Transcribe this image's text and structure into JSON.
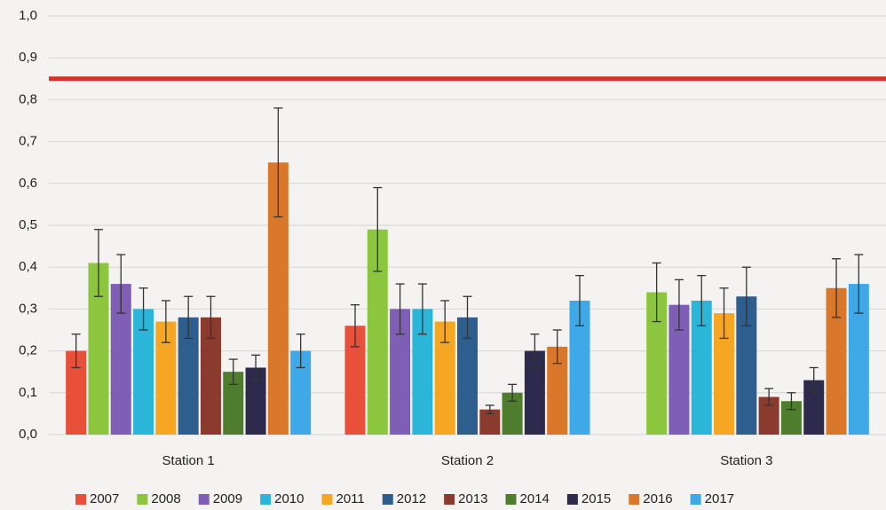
{
  "chart_data": {
    "type": "bar",
    "categories": [
      "Station 1",
      "Station 2",
      "Station 3"
    ],
    "ylim": [
      0,
      1
    ],
    "yticks": [
      {
        "value": 0,
        "label": "0,0"
      },
      {
        "value": 0.1,
        "label": "0,1"
      },
      {
        "value": 0.2,
        "label": "0,2"
      },
      {
        "value": 0.3,
        "label": "0,3"
      },
      {
        "value": 0.4,
        "label": "0,4"
      },
      {
        "value": 0.5,
        "label": "0,5"
      },
      {
        "value": 0.6,
        "label": "0,6"
      },
      {
        "value": 0.7,
        "label": "0,7"
      },
      {
        "value": 0.8,
        "label": "0,8"
      },
      {
        "value": 0.9,
        "label": "0,9"
      },
      {
        "value": 1,
        "label": "1,0"
      }
    ],
    "grid": true,
    "legend": "bottom",
    "reference_line": {
      "value": 0.85,
      "color": "#d9302a"
    },
    "series": [
      {
        "name": "2007",
        "color": "#e8503a",
        "values": [
          0.2,
          0.26,
          null
        ],
        "errors": [
          0.04,
          0.05,
          null
        ]
      },
      {
        "name": "2008",
        "color": "#8cc63f",
        "values": [
          0.41,
          0.49,
          0.34
        ],
        "errors": [
          0.08,
          0.1,
          0.07
        ]
      },
      {
        "name": "2009",
        "color": "#7e5fb5",
        "values": [
          0.36,
          0.3,
          0.31
        ],
        "errors": [
          0.07,
          0.06,
          0.06
        ]
      },
      {
        "name": "2010",
        "color": "#2bb5d8",
        "values": [
          0.3,
          0.3,
          0.32
        ],
        "errors": [
          0.05,
          0.06,
          0.06
        ]
      },
      {
        "name": "2011",
        "color": "#f5a623",
        "values": [
          0.27,
          0.27,
          0.29
        ],
        "errors": [
          0.05,
          0.05,
          0.06
        ]
      },
      {
        "name": "2012",
        "color": "#2e5e8e",
        "values": [
          0.28,
          0.28,
          0.33
        ],
        "errors": [
          0.05,
          0.05,
          0.07
        ]
      },
      {
        "name": "2013",
        "color": "#8b3a2e",
        "values": [
          0.28,
          0.06,
          0.09
        ],
        "errors": [
          0.05,
          0.01,
          0.02
        ]
      },
      {
        "name": "2014",
        "color": "#4e7d2e",
        "values": [
          0.15,
          0.1,
          0.08
        ],
        "errors": [
          0.03,
          0.02,
          0.02
        ]
      },
      {
        "name": "2015",
        "color": "#2e2a4e",
        "values": [
          0.16,
          0.2,
          0.13
        ],
        "errors": [
          0.03,
          0.04,
          0.03
        ]
      },
      {
        "name": "2016",
        "color": "#d9782a",
        "values": [
          0.65,
          0.21,
          0.35
        ],
        "errors": [
          0.13,
          0.04,
          0.07
        ]
      },
      {
        "name": "2017",
        "color": "#3fa9e8",
        "values": [
          0.2,
          0.32,
          0.36
        ],
        "errors": [
          0.04,
          0.06,
          0.07
        ]
      }
    ]
  }
}
